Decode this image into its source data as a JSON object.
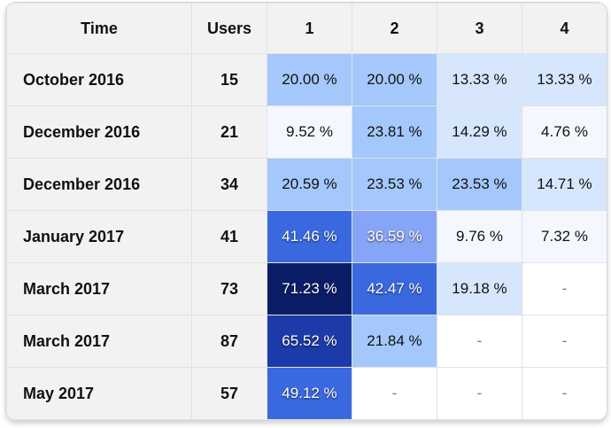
{
  "table": {
    "headers": [
      "Time",
      "Users",
      "1",
      "2",
      "3",
      "4"
    ],
    "rows": [
      {
        "time": "October 2016",
        "users": "15",
        "cells": [
          {
            "text": "20.00 %",
            "bg": "#a4c8fb",
            "dark": false
          },
          {
            "text": "20.00 %",
            "bg": "#a4c8fb",
            "dark": false
          },
          {
            "text": "13.33 %",
            "bg": "#d6e6fd",
            "dark": false
          },
          {
            "text": "13.33 %",
            "bg": "#d6e6fd",
            "dark": false
          }
        ]
      },
      {
        "time": "December 2016",
        "users": "21",
        "cells": [
          {
            "text": "9.52 %",
            "bg": "#f4f8fe",
            "dark": false
          },
          {
            "text": "23.81 %",
            "bg": "#a4c8fb",
            "dark": false
          },
          {
            "text": "14.29 %",
            "bg": "#d6e6fd",
            "dark": false
          },
          {
            "text": "4.76 %",
            "bg": "#f4f8fe",
            "dark": false
          }
        ]
      },
      {
        "time": "December 2016",
        "users": "34",
        "cells": [
          {
            "text": "20.59 %",
            "bg": "#a4c8fb",
            "dark": false
          },
          {
            "text": "23.53 %",
            "bg": "#a4c8fb",
            "dark": false
          },
          {
            "text": "23.53 %",
            "bg": "#a4c8fb",
            "dark": false
          },
          {
            "text": "14.71 %",
            "bg": "#d6e6fd",
            "dark": false
          }
        ]
      },
      {
        "time": "January 2017",
        "users": "41",
        "cells": [
          {
            "text": "41.46 %",
            "bg": "#3a69df",
            "dark": true
          },
          {
            "text": "36.59 %",
            "bg": "#87a5f6",
            "dark": true
          },
          {
            "text": "9.76 %",
            "bg": "#f4f8fe",
            "dark": false
          },
          {
            "text": "7.32 %",
            "bg": "#f4f8fe",
            "dark": false
          }
        ]
      },
      {
        "time": "March 2017",
        "users": "73",
        "cells": [
          {
            "text": "71.23 %",
            "bg": "#0b1d67",
            "dark": true
          },
          {
            "text": "42.47 %",
            "bg": "#3a69df",
            "dark": true
          },
          {
            "text": "19.18 %",
            "bg": "#d6e6fd",
            "dark": false
          },
          {
            "text": "-",
            "bg": "#ffffff",
            "dark": false
          }
        ]
      },
      {
        "time": "March 2017",
        "users": "87",
        "cells": [
          {
            "text": "65.52 %",
            "bg": "#1d3ba8",
            "dark": true
          },
          {
            "text": "21.84 %",
            "bg": "#a4c8fb",
            "dark": false
          },
          {
            "text": "-",
            "bg": "#ffffff",
            "dark": false
          },
          {
            "text": "-",
            "bg": "#ffffff",
            "dark": false
          }
        ]
      },
      {
        "time": "May 2017",
        "users": "57",
        "cells": [
          {
            "text": "49.12 %",
            "bg": "#3a69df",
            "dark": true
          },
          {
            "text": "-",
            "bg": "#ffffff",
            "dark": false
          },
          {
            "text": "-",
            "bg": "#ffffff",
            "dark": false
          },
          {
            "text": "-",
            "bg": "#ffffff",
            "dark": false
          }
        ]
      }
    ]
  }
}
